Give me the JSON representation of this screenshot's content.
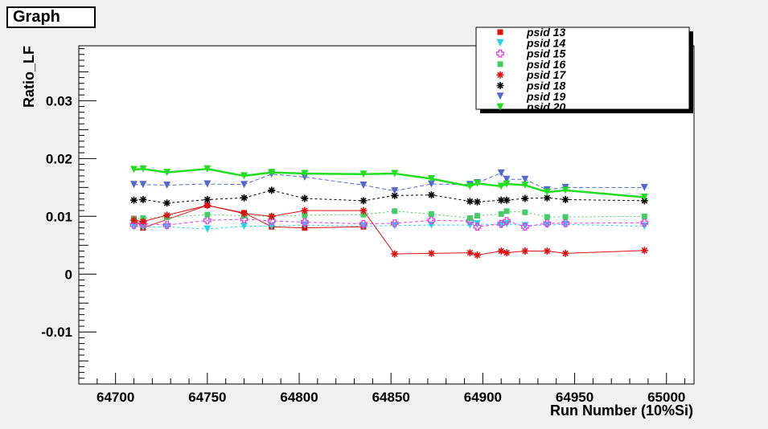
{
  "canvas_title": "Graph",
  "chart_data": {
    "type": "line",
    "title": "Graph",
    "xlabel": "Run Number (10%Si)",
    "ylabel": "Ratio_LF",
    "xlim": [
      64680,
      65015
    ],
    "ylim": [
      -0.019,
      0.0395
    ],
    "xticks": [
      64700,
      64750,
      64800,
      64850,
      64900,
      64950,
      65000
    ],
    "xtick_labels": [
      "64700",
      "64750",
      "64800",
      "64850",
      "64900",
      "64950",
      "65000"
    ],
    "yticks": [
      -0.01,
      0,
      0.01,
      0.02,
      0.03
    ],
    "ytick_labels": [
      "-0.01",
      "0",
      "0.01",
      "0.02",
      "0.03"
    ],
    "grid": false,
    "legend_position": "top-right",
    "series": [
      {
        "name": "psid 13",
        "color": "#dd1111",
        "marker": "square",
        "dash": "",
        "width": 1,
        "x": [
          64710,
          64715,
          64750,
          64770,
          64785,
          64803,
          64835
        ],
        "y": [
          0.0096,
          0.008,
          0.0119,
          0.0106,
          0.0082,
          0.008,
          0.0082
        ]
      },
      {
        "name": "psid 14",
        "color": "#22d4e8",
        "marker": "triangle-down",
        "dash": "3,3",
        "width": 1,
        "x": [
          64710,
          64715,
          64728,
          64750,
          64770,
          64785,
          64803,
          64835,
          64852,
          64872,
          64893,
          64897,
          64910,
          64913,
          64923,
          64935,
          64945,
          64988
        ],
        "y": [
          0.0082,
          0.0081,
          0.0082,
          0.0078,
          0.0083,
          0.0083,
          0.0085,
          0.0083,
          0.0084,
          0.0085,
          0.0085,
          0.0087,
          0.0085,
          0.0087,
          0.0084,
          0.0085,
          0.0086,
          0.0083
        ]
      },
      {
        "name": "psid 15",
        "color": "#e040e0",
        "marker": "cross-open",
        "dash": "4,3",
        "width": 1,
        "x": [
          64710,
          64715,
          64728,
          64750,
          64770,
          64785,
          64803,
          64835,
          64852,
          64872,
          64893,
          64897,
          64910,
          64913,
          64923,
          64935,
          64945,
          64988
        ],
        "y": [
          0.0085,
          0.0087,
          0.0085,
          0.0093,
          0.0095,
          0.0092,
          0.009,
          0.0087,
          0.0088,
          0.0093,
          0.0092,
          0.0082,
          0.0087,
          0.0092,
          0.0082,
          0.0088,
          0.0088,
          0.0089
        ]
      },
      {
        "name": "psid 16",
        "color": "#44cc66",
        "marker": "square",
        "dash": "2,3",
        "width": 1,
        "x": [
          64710,
          64715,
          64728,
          64750,
          64770,
          64785,
          64803,
          64835,
          64852,
          64872,
          64893,
          64897,
          64910,
          64913,
          64923,
          64935,
          64945,
          64988
        ],
        "y": [
          0.0095,
          0.0097,
          0.0098,
          0.0103,
          0.0101,
          0.01,
          0.0102,
          0.0103,
          0.0109,
          0.0104,
          0.0097,
          0.0101,
          0.0104,
          0.0109,
          0.0107,
          0.0099,
          0.0099,
          0.01
        ]
      },
      {
        "name": "psid 17",
        "color": "#dd1111",
        "marker": "star",
        "dash": "",
        "width": 1,
        "x": [
          64710,
          64715,
          64728,
          64750,
          64770,
          64785,
          64803,
          64835,
          64852,
          64872,
          64893,
          64897,
          64910,
          64913,
          64923,
          64935,
          64945,
          64988
        ],
        "y": [
          0.0093,
          0.0091,
          0.0102,
          0.0119,
          0.0105,
          0.01,
          0.011,
          0.011,
          0.0035,
          0.0036,
          0.0037,
          0.0033,
          0.004,
          0.0037,
          0.004,
          0.004,
          0.0036,
          0.0041
        ]
      },
      {
        "name": "psid 18",
        "color": "#000000",
        "marker": "star",
        "dash": "3,3",
        "width": 1,
        "x": [
          64710,
          64715,
          64728,
          64750,
          64770,
          64785,
          64803,
          64835,
          64852,
          64872,
          64893,
          64897,
          64910,
          64913,
          64923,
          64935,
          64945,
          64988
        ],
        "y": [
          0.0128,
          0.0129,
          0.0123,
          0.0129,
          0.0132,
          0.0145,
          0.0131,
          0.0127,
          0.0136,
          0.0137,
          0.0126,
          0.0125,
          0.0128,
          0.0128,
          0.0131,
          0.0132,
          0.0129,
          0.0127
        ]
      },
      {
        "name": "psid 19",
        "color": "#5566cc",
        "marker": "triangle-down",
        "dash": "5,3",
        "width": 1,
        "x": [
          64710,
          64715,
          64728,
          64750,
          64770,
          64785,
          64803,
          64835,
          64852,
          64872,
          64893,
          64897,
          64910,
          64913,
          64923,
          64935,
          64945,
          64988
        ],
        "y": [
          0.0155,
          0.0155,
          0.0154,
          0.0156,
          0.0155,
          0.0173,
          0.0168,
          0.0154,
          0.0144,
          0.0156,
          0.0155,
          0.0158,
          0.0175,
          0.0164,
          0.0164,
          0.0146,
          0.015,
          0.015
        ]
      },
      {
        "name": "psid 20",
        "color": "#22dd22",
        "marker": "triangle-down",
        "dash": "",
        "width": 2.5,
        "x": [
          64710,
          64715,
          64728,
          64750,
          64770,
          64785,
          64803,
          64835,
          64852,
          64872,
          64893,
          64897,
          64910,
          64913,
          64923,
          64935,
          64945,
          64988
        ],
        "y": [
          0.0181,
          0.0182,
          0.0176,
          0.0182,
          0.017,
          0.0176,
          0.0174,
          0.0173,
          0.0174,
          0.0165,
          0.0152,
          0.0157,
          0.0152,
          0.0156,
          0.0154,
          0.0142,
          0.0145,
          0.0133
        ]
      }
    ]
  }
}
